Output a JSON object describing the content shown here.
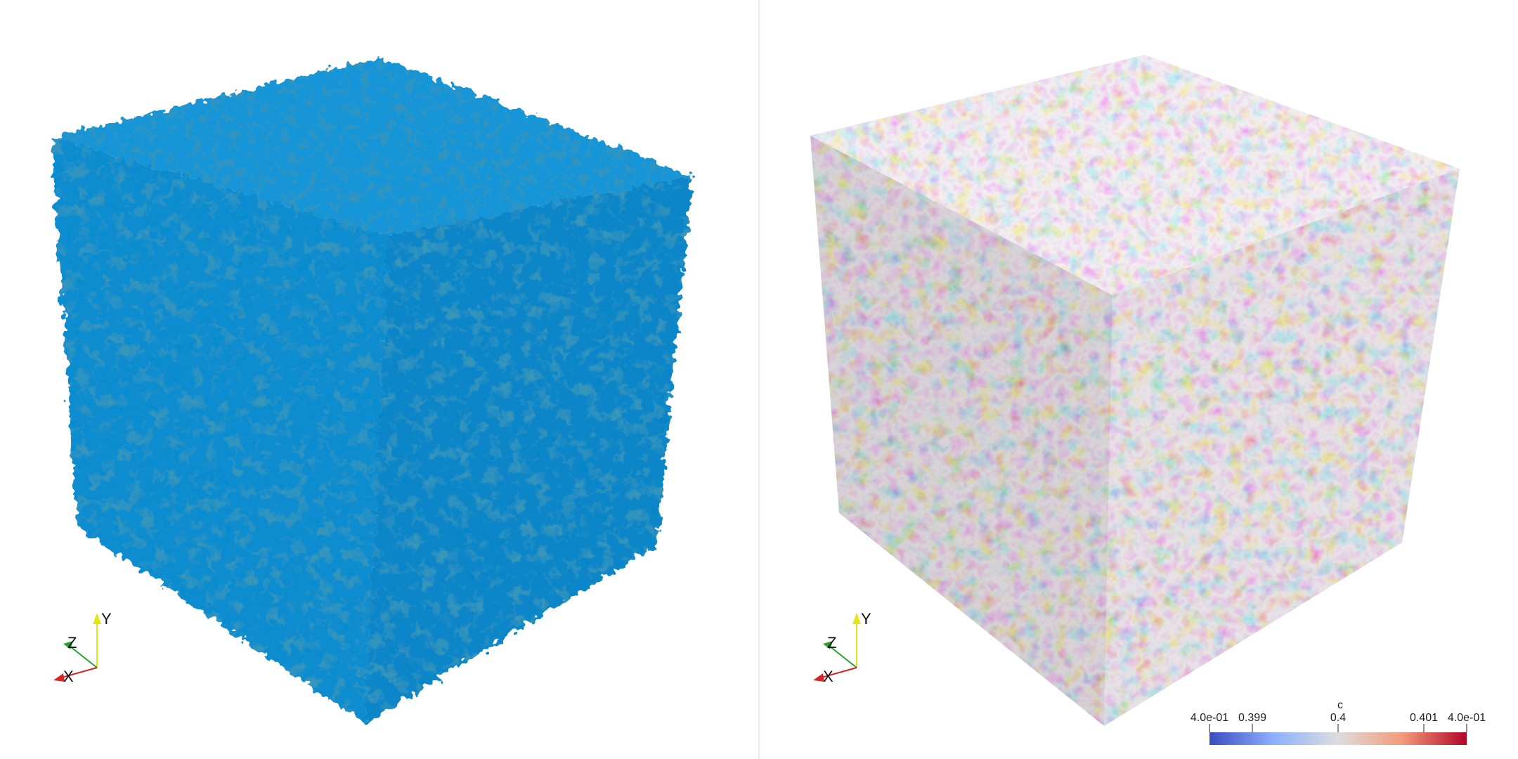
{
  "layout": {
    "panels": [
      "isosurface-view",
      "slice-view"
    ]
  },
  "colors": {
    "iso_fill": "#0e8fd3",
    "iso_dark": "#0a4f7a",
    "cube_base": "#c8b9b0",
    "cmap_low": "#3b4cc0",
    "cmap_mid": "#dddddd",
    "cmap_high": "#b40426",
    "axis_x": "#d62728",
    "axis_y": "#e5e51a",
    "axis_z": "#2ca02c"
  },
  "axes_widget": {
    "x": "X",
    "y": "Y",
    "z": "Z"
  },
  "colorbar": {
    "title": "c",
    "ticks": [
      {
        "label": "4.0e-01",
        "value": 0.3985
      },
      {
        "label": "0.399",
        "value": 0.399
      },
      {
        "label": "0.4",
        "value": 0.4
      },
      {
        "label": "0.401",
        "value": 0.401
      },
      {
        "label": "4.0e-01",
        "value": 0.4015
      }
    ],
    "range": [
      0.3985,
      0.4015
    ]
  }
}
